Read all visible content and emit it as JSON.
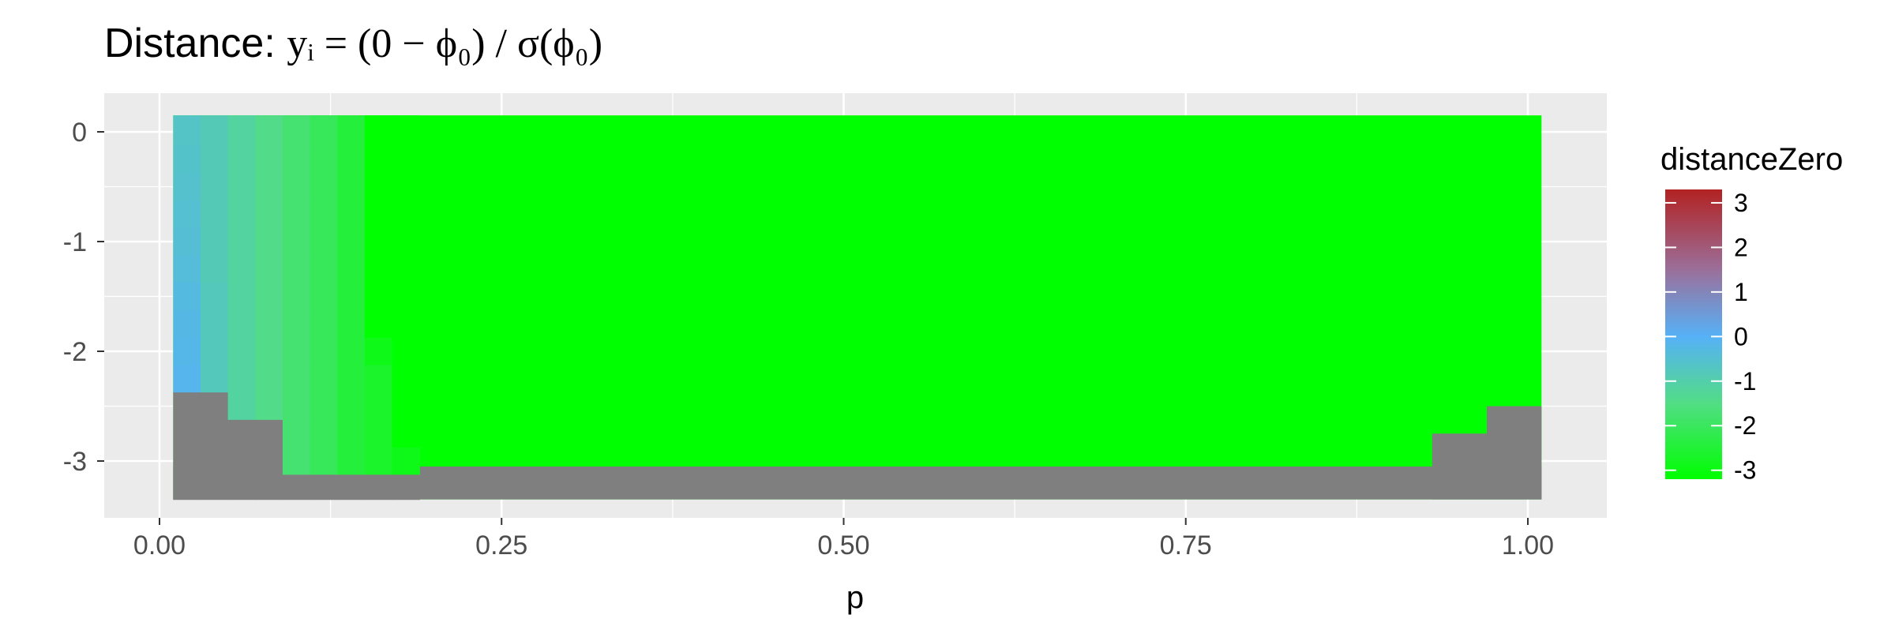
{
  "chart_data": {
    "type": "heatmap",
    "title_prefix": "Distance: ",
    "title_formula": "yᵢ = (0 − ϕ₀) / σ(ϕ₀)",
    "xlabel": "p",
    "ylabel": "",
    "xlim": [
      0,
      1.01
    ],
    "ylim": [
      -3.35,
      0.15
    ],
    "x_ticks": [
      0,
      0.25,
      0.5,
      0.75,
      1
    ],
    "x_tick_labels": [
      "0.00",
      "0.25",
      "0.50",
      "0.75",
      "1.00"
    ],
    "y_ticks": [
      0,
      -1,
      -2,
      -3
    ],
    "y_tick_labels": [
      "0",
      "-1",
      "-2",
      "-3"
    ],
    "grid": true,
    "legend": {
      "title": "distanceZero",
      "position": "right",
      "breaks": [
        3,
        2,
        1,
        0,
        -1,
        -2,
        -3
      ],
      "labels": [
        "3",
        "2",
        "1",
        "0",
        "-1",
        "-2",
        "-3"
      ],
      "range": [
        -3.2,
        3.3
      ],
      "colors": [
        {
          "value": 3.3,
          "color": "#b22222"
        },
        {
          "value": 1.5,
          "color": "#9b6f9a"
        },
        {
          "value": 0,
          "color": "#56b1f7"
        },
        {
          "value": -1.5,
          "color": "#52dd85"
        },
        {
          "value": -3.2,
          "color": "#00ff00"
        }
      ],
      "na_color": "#7f7f7f"
    },
    "x_bins": [
      0.02,
      0.04,
      0.06,
      0.08,
      0.1,
      0.12,
      0.14,
      0.16,
      0.18,
      0.2
    ],
    "y_bins": [
      0,
      -0.25,
      -0.5,
      -0.75,
      -1,
      -1.25,
      -1.5,
      -1.75,
      -2,
      -2.25,
      -2.5,
      -2.75,
      -3,
      -3.25
    ],
    "default_value": -3.2,
    "columns": [
      {
        "x": 0.02,
        "values": [
          -0.65,
          -0.6,
          -0.55,
          -0.5,
          -0.45,
          -0.4,
          -0.3,
          -0.25,
          -0.2,
          -0.15,
          null,
          null,
          null,
          null
        ]
      },
      {
        "x": 0.04,
        "values": [
          -0.85,
          -0.85,
          -0.85,
          -0.85,
          -0.85,
          -0.85,
          -0.8,
          -0.8,
          -0.8,
          -0.8,
          null,
          null,
          null,
          null
        ]
      },
      {
        "x": 0.06,
        "values": [
          -1.15,
          -1.15,
          -1.15,
          -1.15,
          -1.15,
          -1.15,
          -1.15,
          -1.15,
          -1.15,
          -1.15,
          -1.15,
          null,
          null,
          null
        ]
      },
      {
        "x": 0.08,
        "values": [
          -1.45,
          -1.45,
          -1.45,
          -1.45,
          -1.45,
          -1.45,
          -1.45,
          -1.45,
          -1.45,
          -1.45,
          -1.45,
          null,
          null,
          null
        ]
      },
      {
        "x": 0.1,
        "values": [
          -1.75,
          -1.75,
          -1.75,
          -1.75,
          -1.75,
          -1.75,
          -1.75,
          -1.75,
          -1.75,
          -1.75,
          -1.75,
          -1.75,
          -1.75,
          null
        ]
      },
      {
        "x": 0.12,
        "values": [
          -2.05,
          -2.05,
          -2.05,
          -2.05,
          -2.05,
          -2.05,
          -2.05,
          -2.05,
          -2.05,
          -2.05,
          -2.05,
          -2.05,
          -2.05,
          null
        ]
      },
      {
        "x": 0.14,
        "values": [
          -2.45,
          -2.45,
          -2.45,
          -2.45,
          -2.45,
          -2.45,
          -2.45,
          -2.45,
          -2.45,
          -2.45,
          -2.45,
          -2.45,
          -2.45,
          null
        ]
      },
      {
        "x": 0.16,
        "values": [
          -3.2,
          -3.2,
          -3.2,
          -3.2,
          -3.2,
          -3.2,
          -3.2,
          -3.2,
          -2.9,
          -2.65,
          -2.65,
          -2.65,
          -2.65,
          null
        ]
      },
      {
        "x": 0.18,
        "values": [
          -3.2,
          -3.2,
          -3.2,
          -3.2,
          -3.2,
          -3.2,
          -3.2,
          -3.2,
          -3.2,
          -3.2,
          -3.2,
          -3.2,
          -2.9,
          null
        ]
      }
    ],
    "right_edge_missing": [
      {
        "x_from": 0.93,
        "x_to": 0.97,
        "y_below": -2.75
      },
      {
        "x_from": 0.97,
        "x_to": 1.01,
        "y_below": -2.5
      }
    ],
    "bottom_row_missing": true
  }
}
